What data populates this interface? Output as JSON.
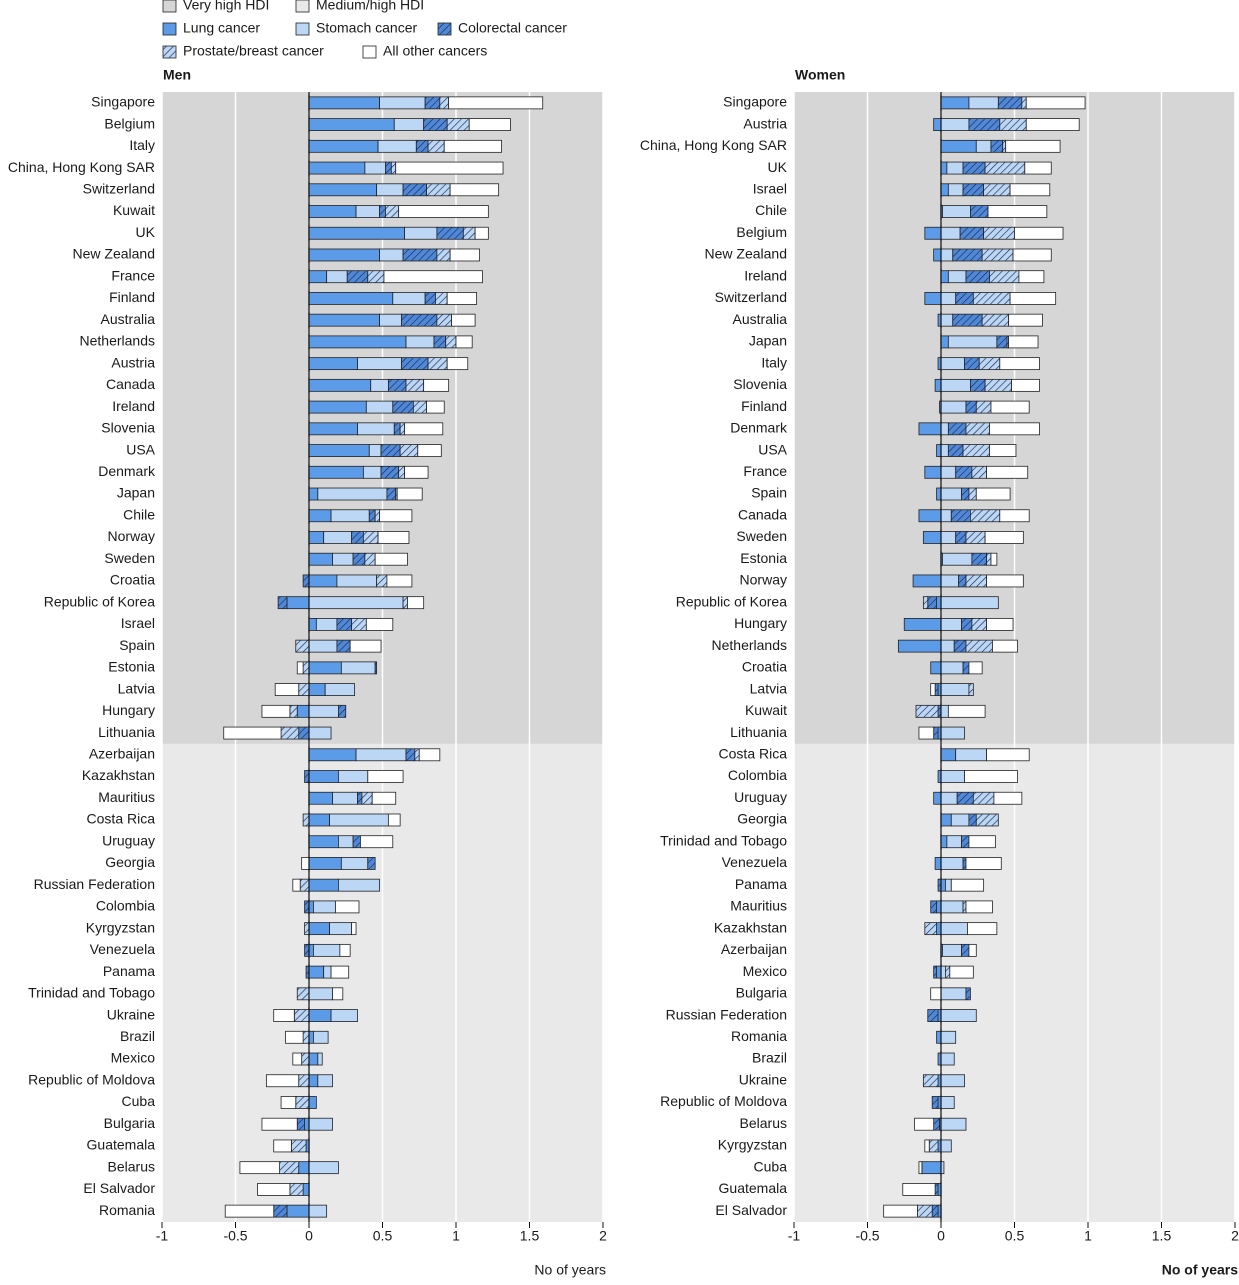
{
  "hdi_groups": [
    {
      "name": "Very high HDI",
      "color": "#d6d6d6"
    },
    {
      "name": "Medium/high HDI",
      "color": "#e9e9e9"
    }
  ],
  "chart_data": [
    {
      "type": "bar",
      "orientation": "horizontal",
      "stacked": true,
      "title": "Men",
      "xlabel": "No of years",
      "xlim": [
        -1,
        2
      ],
      "xticks": [
        -1,
        -0.5,
        0,
        0.5,
        1,
        1.5,
        2
      ],
      "grid": true,
      "categories": [
        "Singapore",
        "Belgium",
        "Italy",
        "China, Hong Kong SAR",
        "Switzerland",
        "Kuwait",
        "UK",
        "New Zealand",
        "France",
        "Finland",
        "Australia",
        "Netherlands",
        "Austria",
        "Canada",
        "Ireland",
        "Slovenia",
        "USA",
        "Denmark",
        "Japan",
        "Chile",
        "Norway",
        "Sweden",
        "Croatia",
        "Republic of Korea",
        "Israel",
        "Spain",
        "Estonia",
        "Latvia",
        "Hungary",
        "Lithuania",
        "Azerbaijan",
        "Kazakhstan",
        "Mauritius",
        "Costa Rica",
        "Uruguay",
        "Georgia",
        "Russian Federation",
        "Colombia",
        "Kyrgyzstan",
        "Venezuela",
        "Panama",
        "Trinidad and Tobago",
        "Ukraine",
        "Brazil",
        "Mexico",
        "Republic of Moldova",
        "Cuba",
        "Bulgaria",
        "Guatemala",
        "Belarus",
        "El Salvador",
        "Romania"
      ],
      "category_hdi": [
        0,
        0,
        0,
        0,
        0,
        0,
        0,
        0,
        0,
        0,
        0,
        0,
        0,
        0,
        0,
        0,
        0,
        0,
        0,
        0,
        0,
        0,
        0,
        0,
        0,
        0,
        0,
        0,
        0,
        0,
        1,
        1,
        1,
        1,
        1,
        1,
        1,
        1,
        1,
        1,
        1,
        1,
        1,
        1,
        1,
        1,
        1,
        1,
        1,
        1,
        1,
        1
      ],
      "series": [
        {
          "name": "Lung cancer",
          "color": "#5b9be8",
          "pattern": "solid",
          "values": [
            0.48,
            0.58,
            0.47,
            0.38,
            0.46,
            0.32,
            0.65,
            0.48,
            0.12,
            0.57,
            0.48,
            0.66,
            0.33,
            0.42,
            0.39,
            0.33,
            0.41,
            0.37,
            0.06,
            0.15,
            0.1,
            0.16,
            0.19,
            -0.15,
            0.05,
            0,
            0.22,
            0.11,
            -0.08,
            0,
            0.32,
            0.2,
            0.16,
            0.14,
            0.2,
            0.22,
            0.2,
            0.03,
            0.14,
            0.03,
            0.1,
            0,
            0.15,
            0.03,
            0.06,
            0.06,
            0.05,
            -0.03,
            -0.02,
            -0.07,
            -0.04,
            -0.15
          ]
        },
        {
          "name": "Stomach cancer",
          "color": "#bcd6f5",
          "pattern": "solid",
          "values": [
            0.31,
            0.2,
            0.26,
            0.14,
            0.18,
            0.16,
            0.22,
            0.16,
            0.14,
            0.22,
            0.15,
            0.19,
            0.3,
            0.12,
            0.18,
            0.25,
            0.08,
            0.12,
            0.47,
            0.26,
            0.19,
            0.14,
            0.27,
            0.64,
            0.14,
            0.19,
            0.23,
            0.2,
            0.2,
            0.15,
            0.34,
            0.2,
            0.17,
            0.4,
            0.1,
            0.18,
            0.28,
            0.15,
            0.15,
            0.18,
            0.05,
            0.16,
            0.18,
            0.1,
            0.03,
            0.1,
            0,
            0.16,
            0,
            0.2,
            0,
            0.12
          ]
        },
        {
          "name": "Colorectal cancer",
          "color": "#4f88d8",
          "pattern": "hatch",
          "values": [
            0.1,
            0.16,
            0.08,
            0.04,
            0.16,
            0.04,
            0.18,
            0.23,
            0.14,
            0.07,
            0.24,
            0.08,
            0.18,
            0.12,
            0.14,
            0.04,
            0.13,
            0.12,
            0.06,
            0.04,
            0.08,
            0.08,
            -0.04,
            -0.06,
            0.1,
            0.09,
            0.01,
            0,
            0.05,
            -0.07,
            0.06,
            -0.03,
            0.03,
            0,
            0.05,
            0.05,
            0,
            -0.03,
            0,
            -0.03,
            -0.02,
            0,
            0,
            0,
            0,
            0,
            0,
            -0.05,
            0,
            0,
            0,
            -0.09
          ]
        },
        {
          "name": "Prostate/breast cancer",
          "color": "#bcd6f5",
          "pattern": "hatch",
          "values": [
            0.06,
            0.15,
            0.11,
            0.03,
            0.16,
            0.09,
            0.08,
            0.09,
            0.11,
            0.08,
            0.1,
            0.07,
            0.13,
            0.12,
            0.09,
            0.03,
            0.12,
            0.04,
            0.01,
            0.03,
            0.1,
            0.07,
            0.07,
            0.03,
            0.1,
            -0.09,
            -0.04,
            -0.07,
            -0.05,
            -0.12,
            0.03,
            0,
            0.07,
            -0.04,
            0,
            0,
            -0.06,
            0,
            -0.03,
            0,
            0,
            -0.08,
            -0.1,
            -0.04,
            -0.05,
            -0.07,
            -0.09,
            0,
            -0.1,
            -0.13,
            -0.09,
            0
          ]
        },
        {
          "name": "All other cancers",
          "color": "#ffffff",
          "pattern": "solid",
          "values": [
            0.64,
            0.28,
            0.39,
            0.73,
            0.33,
            0.61,
            0.09,
            0.2,
            0.67,
            0.2,
            0.16,
            0.11,
            0.14,
            0.17,
            0.12,
            0.26,
            0.16,
            0.16,
            0.17,
            0.22,
            0.21,
            0.22,
            0.17,
            0.11,
            0.18,
            0.21,
            -0.04,
            -0.16,
            -0.19,
            -0.39,
            0.14,
            0.24,
            0.16,
            0.08,
            0.22,
            -0.05,
            -0.05,
            0.16,
            0.03,
            0.07,
            0.12,
            0.07,
            -0.14,
            -0.12,
            -0.06,
            -0.22,
            -0.1,
            -0.24,
            -0.12,
            -0.27,
            -0.22,
            -0.33
          ]
        }
      ]
    },
    {
      "type": "bar",
      "orientation": "horizontal",
      "stacked": true,
      "title": "Women",
      "xlabel": "No of years",
      "xlim": [
        -1,
        2
      ],
      "xticks": [
        -1,
        -0.5,
        0,
        0.5,
        1,
        1.5,
        2
      ],
      "grid": true,
      "categories": [
        "Singapore",
        "Austria",
        "China, Hong Kong SAR",
        "UK",
        "Israel",
        "Chile",
        "Belgium",
        "New Zealand",
        "Ireland",
        "Switzerland",
        "Australia",
        "Japan",
        "Italy",
        "Slovenia",
        "Finland",
        "Denmark",
        "USA",
        "France",
        "Spain",
        "Canada",
        "Sweden",
        "Estonia",
        "Norway",
        "Republic of Korea",
        "Hungary",
        "Netherlands",
        "Croatia",
        "Latvia",
        "Kuwait",
        "Lithuania",
        "Costa Rica",
        "Colombia",
        "Uruguay",
        "Georgia",
        "Trinidad and Tobago",
        "Venezuela",
        "Panama",
        "Mauritius",
        "Kazakhstan",
        "Azerbaijan",
        "Mexico",
        "Bulgaria",
        "Russian Federation",
        "Romania",
        "Brazil",
        "Ukraine",
        "Republic of Moldova",
        "Belarus",
        "Kyrgyzstan",
        "Cuba",
        "Guatemala",
        "El Salvador"
      ],
      "category_hdi": [
        0,
        0,
        0,
        0,
        0,
        0,
        0,
        0,
        0,
        0,
        0,
        0,
        0,
        0,
        0,
        0,
        0,
        0,
        0,
        0,
        0,
        0,
        0,
        0,
        0,
        0,
        0,
        0,
        0,
        0,
        1,
        1,
        1,
        1,
        1,
        1,
        1,
        1,
        1,
        1,
        1,
        1,
        1,
        1,
        1,
        1,
        1,
        1,
        1,
        1,
        1,
        1
      ],
      "series": [
        {
          "name": "Lung cancer",
          "color": "#5b9be8",
          "pattern": "solid",
          "values": [
            0.19,
            -0.05,
            0.24,
            0.04,
            0.05,
            0.01,
            -0.11,
            -0.05,
            0.05,
            -0.11,
            -0.02,
            0.05,
            -0.02,
            -0.04,
            -0.01,
            -0.15,
            -0.03,
            -0.11,
            -0.03,
            -0.15,
            -0.12,
            0.01,
            -0.19,
            -0.03,
            -0.25,
            -0.29,
            -0.07,
            -0.02,
            0,
            -0.02,
            0.1,
            -0.02,
            -0.05,
            0.07,
            0.04,
            -0.04,
            0.03,
            -0.03,
            -0.03,
            0.01,
            -0.03,
            0,
            -0.02,
            -0.03,
            -0.02,
            -0.02,
            -0.02,
            -0.01,
            -0.02,
            -0.13,
            -0.02,
            -0.02
          ]
        },
        {
          "name": "Stomach cancer",
          "color": "#bcd6f5",
          "pattern": "solid",
          "values": [
            0.2,
            0.19,
            0.1,
            0.11,
            0.1,
            0.19,
            0.13,
            0.08,
            0.12,
            0.1,
            0.08,
            0.33,
            0.16,
            0.2,
            0.17,
            0.05,
            0.05,
            0.1,
            0.14,
            0.07,
            0.1,
            0.2,
            0.12,
            0.39,
            0.14,
            0.09,
            0.15,
            0.19,
            0.05,
            0.16,
            0.21,
            0.16,
            0.11,
            0.12,
            0.1,
            0.15,
            0.04,
            0.15,
            0.18,
            0.13,
            0.03,
            0.17,
            0.24,
            0.1,
            0.09,
            0.16,
            0.09,
            0.17,
            0.07,
            0.02,
            0,
            0
          ]
        },
        {
          "name": "Colorectal cancer",
          "color": "#4f88d8",
          "pattern": "hatch",
          "values": [
            0.16,
            0.21,
            0.08,
            0.15,
            0.14,
            0.12,
            0.16,
            0.2,
            0.16,
            0.12,
            0.2,
            0.07,
            0.1,
            0.1,
            0.07,
            0.12,
            0.1,
            0.11,
            0.05,
            0.13,
            0.07,
            0.1,
            0.05,
            -0.06,
            0.07,
            0.08,
            0.04,
            -0.02,
            -0.02,
            -0.03,
            0,
            0,
            0.11,
            0.05,
            0.05,
            0.02,
            -0.02,
            -0.04,
            0,
            0.05,
            -0.02,
            0.03,
            -0.07,
            0,
            0,
            0,
            -0.04,
            -0.04,
            0,
            0,
            -0.02,
            -0.04
          ]
        },
        {
          "name": "Prostate/breast cancer",
          "color": "#bcd6f5",
          "pattern": "hatch",
          "values": [
            0.03,
            0.18,
            0.02,
            0.27,
            0.18,
            0,
            0.21,
            0.21,
            0.2,
            0.25,
            0.18,
            0.01,
            0.14,
            0.18,
            0.1,
            0.16,
            0.18,
            0.1,
            0.05,
            0.2,
            0.13,
            0.03,
            0.14,
            -0.03,
            0.1,
            0.18,
            0,
            0.03,
            -0.15,
            0,
            0,
            0,
            0.14,
            0.15,
            0,
            0,
            0,
            0.02,
            -0.08,
            0,
            0.03,
            0,
            0,
            0,
            0,
            -0.1,
            0,
            0,
            -0.06,
            0,
            0,
            -0.1
          ]
        },
        {
          "name": "All other cancers",
          "color": "#ffffff",
          "pattern": "solid",
          "values": [
            0.4,
            0.36,
            0.37,
            0.18,
            0.27,
            0.4,
            0.33,
            0.26,
            0.17,
            0.31,
            0.23,
            0.2,
            0.27,
            0.19,
            0.26,
            0.34,
            0.18,
            0.28,
            0.23,
            0.2,
            0.26,
            0.04,
            0.25,
            0,
            0.18,
            0.17,
            0.09,
            -0.03,
            0.25,
            -0.1,
            0.29,
            0.36,
            0.19,
            0,
            0.18,
            0.24,
            0.22,
            0.18,
            0.2,
            0.05,
            0.16,
            -0.07,
            0,
            0,
            0,
            0,
            0,
            -0.13,
            -0.03,
            -0.02,
            -0.22,
            -0.23
          ]
        }
      ]
    }
  ]
}
